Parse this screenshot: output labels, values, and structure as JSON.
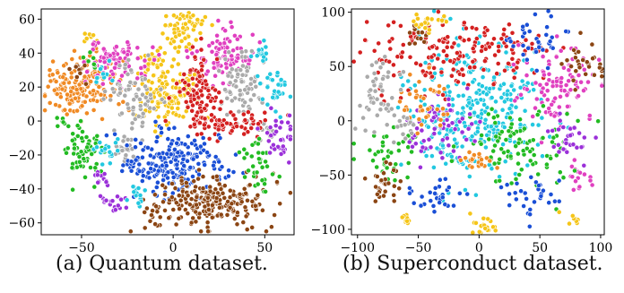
{
  "captions": {
    "a": "(a) Quantum dataset.",
    "b": "(b) Superconduct dataset."
  },
  "chart_data": [
    {
      "type": "scatter",
      "title": "",
      "xlabel": "",
      "ylabel": "",
      "xlim": [
        -72,
        66
      ],
      "ylim": [
        -67,
        66
      ],
      "xticks": [
        -50,
        0,
        50
      ],
      "yticks": [
        -60,
        -40,
        -20,
        0,
        20,
        40,
        60
      ],
      "grid": false,
      "legend": "none",
      "clusters": [
        {
          "color": "#f5c518",
          "center": [
            -3,
            14
          ],
          "spread": [
            7,
            8
          ],
          "count": 120
        },
        {
          "color": "#f5c518",
          "center": [
            3,
            52
          ],
          "spread": [
            5,
            7
          ],
          "count": 60
        },
        {
          "color": "#f5c518",
          "center": [
            -12,
            35
          ],
          "spread": [
            4,
            4
          ],
          "count": 30
        },
        {
          "color": "#f5c518",
          "center": [
            12,
            58
          ],
          "spread": [
            3,
            2
          ],
          "count": 12
        },
        {
          "color": "#f5c518",
          "center": [
            -45,
            50
          ],
          "spread": [
            2,
            2
          ],
          "count": 8
        },
        {
          "color": "#f08a24",
          "center": [
            -48,
            20
          ],
          "spread": [
            11,
            9
          ],
          "count": 150
        },
        {
          "color": "#f08a24",
          "center": [
            -62,
            24
          ],
          "spread": [
            3,
            4
          ],
          "count": 14
        },
        {
          "color": "#e040c0",
          "center": [
            -28,
            35
          ],
          "spread": [
            10,
            6
          ],
          "count": 80
        },
        {
          "color": "#e040c0",
          "center": [
            27,
            38
          ],
          "spread": [
            8,
            9
          ],
          "count": 90
        },
        {
          "color": "#aaaaaa",
          "center": [
            -22,
            15
          ],
          "spread": [
            7,
            10
          ],
          "count": 70
        },
        {
          "color": "#aaaaaa",
          "center": [
            38,
            20
          ],
          "spread": [
            7,
            10
          ],
          "count": 80
        },
        {
          "color": "#aaaaaa",
          "center": [
            -25,
            -18
          ],
          "spread": [
            4,
            5
          ],
          "count": 25
        },
        {
          "color": "#aaaaaa",
          "center": [
            52,
            -6
          ],
          "spread": [
            3,
            3
          ],
          "count": 12
        },
        {
          "color": "#d42020",
          "center": [
            15,
            18
          ],
          "spread": [
            6,
            10
          ],
          "count": 90
        },
        {
          "color": "#d42020",
          "center": [
            30,
            -2
          ],
          "spread": [
            12,
            4
          ],
          "count": 70
        },
        {
          "color": "#1a4fd6",
          "center": [
            0,
            -25
          ],
          "spread": [
            14,
            10
          ],
          "count": 220
        },
        {
          "color": "#8b4513",
          "center": [
            22,
            -48
          ],
          "spread": [
            16,
            7
          ],
          "count": 220
        },
        {
          "color": "#8b4513",
          "center": [
            -12,
            -55
          ],
          "spread": [
            3,
            5
          ],
          "count": 16
        },
        {
          "color": "#8b4513",
          "center": [
            -52,
            30
          ],
          "spread": [
            3,
            3
          ],
          "count": 10
        },
        {
          "color": "#22bb22",
          "center": [
            -50,
            -18
          ],
          "spread": [
            6,
            8
          ],
          "count": 60
        },
        {
          "color": "#22bb22",
          "center": [
            48,
            -28
          ],
          "spread": [
            5,
            8
          ],
          "count": 35
        },
        {
          "color": "#22bb22",
          "center": [
            -60,
            0
          ],
          "spread": [
            2,
            2
          ],
          "count": 8
        },
        {
          "color": "#22bb22",
          "center": [
            -45,
            35
          ],
          "spread": [
            3,
            3
          ],
          "count": 10
        },
        {
          "color": "#9b30d9",
          "center": [
            58,
            -8
          ],
          "spread": [
            5,
            6
          ],
          "count": 35
        },
        {
          "color": "#9b30d9",
          "center": [
            -34,
            -48
          ],
          "spread": [
            4,
            3
          ],
          "count": 18
        },
        {
          "color": "#9b30d9",
          "center": [
            -40,
            -33
          ],
          "spread": [
            3,
            3
          ],
          "count": 12
        },
        {
          "color": "#22c8e0",
          "center": [
            55,
            18
          ],
          "spread": [
            4,
            5
          ],
          "count": 30
        },
        {
          "color": "#22c8e0",
          "center": [
            48,
            40
          ],
          "spread": [
            3,
            3
          ],
          "count": 15
        },
        {
          "color": "#22c8e0",
          "center": [
            -35,
            -18
          ],
          "spread": [
            4,
            4
          ],
          "count": 18
        },
        {
          "color": "#22c8e0",
          "center": [
            -20,
            -42
          ],
          "spread": [
            3,
            4
          ],
          "count": 16
        },
        {
          "color": "#22c8e0",
          "center": [
            -38,
            28
          ],
          "spread": [
            3,
            3
          ],
          "count": 12
        }
      ]
    },
    {
      "type": "scatter",
      "title": "",
      "xlabel": "",
      "ylabel": "",
      "xlim": [
        -105,
        103
      ],
      "ylim": [
        -105,
        103
      ],
      "xticks": [
        -100,
        -50,
        0,
        50,
        100
      ],
      "yticks": [
        -100,
        -50,
        0,
        50,
        100
      ],
      "grid": false,
      "legend": "none",
      "clusters": [
        {
          "color": "#22c8e0",
          "center": [
            -3,
            10
          ],
          "spread": [
            28,
            32
          ],
          "count": 320
        },
        {
          "color": "#d42020",
          "center": [
            -40,
            60
          ],
          "spread": [
            30,
            18
          ],
          "count": 120
        },
        {
          "color": "#d42020",
          "center": [
            20,
            70
          ],
          "spread": [
            20,
            12
          ],
          "count": 60
        },
        {
          "color": "#e040c0",
          "center": [
            65,
            30
          ],
          "spread": [
            18,
            20
          ],
          "count": 100
        },
        {
          "color": "#e040c0",
          "center": [
            82,
            -55
          ],
          "spread": [
            5,
            6
          ],
          "count": 15
        },
        {
          "color": "#22bb22",
          "center": [
            35,
            -25
          ],
          "spread": [
            20,
            18
          ],
          "count": 100
        },
        {
          "color": "#22bb22",
          "center": [
            -75,
            -30
          ],
          "spread": [
            12,
            12
          ],
          "count": 40
        },
        {
          "color": "#9b30d9",
          "center": [
            -30,
            -10
          ],
          "spread": [
            14,
            14
          ],
          "count": 60
        },
        {
          "color": "#9b30d9",
          "center": [
            75,
            -20
          ],
          "spread": [
            8,
            10
          ],
          "count": 30
        },
        {
          "color": "#f08a24",
          "center": [
            -45,
            20
          ],
          "spread": [
            10,
            12
          ],
          "count": 40
        },
        {
          "color": "#f08a24",
          "center": [
            0,
            -38
          ],
          "spread": [
            6,
            5
          ],
          "count": 22
        },
        {
          "color": "#aaaaaa",
          "center": [
            -80,
            25
          ],
          "spread": [
            8,
            18
          ],
          "count": 50
        },
        {
          "color": "#aaaaaa",
          "center": [
            -60,
            -5
          ],
          "spread": [
            5,
            5
          ],
          "count": 15
        },
        {
          "color": "#8b4513",
          "center": [
            -80,
            -60
          ],
          "spread": [
            8,
            8
          ],
          "count": 28
        },
        {
          "color": "#8b4513",
          "center": [
            85,
            55
          ],
          "spread": [
            10,
            12
          ],
          "count": 30
        },
        {
          "color": "#8b4513",
          "center": [
            -50,
            80
          ],
          "spread": [
            6,
            4
          ],
          "count": 12
        },
        {
          "color": "#1a4fd6",
          "center": [
            50,
            75
          ],
          "spread": [
            12,
            10
          ],
          "count": 35
        },
        {
          "color": "#1a4fd6",
          "center": [
            45,
            -70
          ],
          "spread": [
            10,
            10
          ],
          "count": 30
        },
        {
          "color": "#1a4fd6",
          "center": [
            -40,
            -70
          ],
          "spread": [
            12,
            8
          ],
          "count": 30
        },
        {
          "color": "#f5c518",
          "center": [
            -40,
            90
          ],
          "spread": [
            8,
            4
          ],
          "count": 22
        },
        {
          "color": "#f5c518",
          "center": [
            0,
            -95
          ],
          "spread": [
            8,
            4
          ],
          "count": 20
        },
        {
          "color": "#f5c518",
          "center": [
            -62,
            -90
          ],
          "spread": [
            4,
            3
          ],
          "count": 10
        },
        {
          "color": "#f5c518",
          "center": [
            75,
            -90
          ],
          "spread": [
            3,
            3
          ],
          "count": 8
        }
      ]
    }
  ]
}
